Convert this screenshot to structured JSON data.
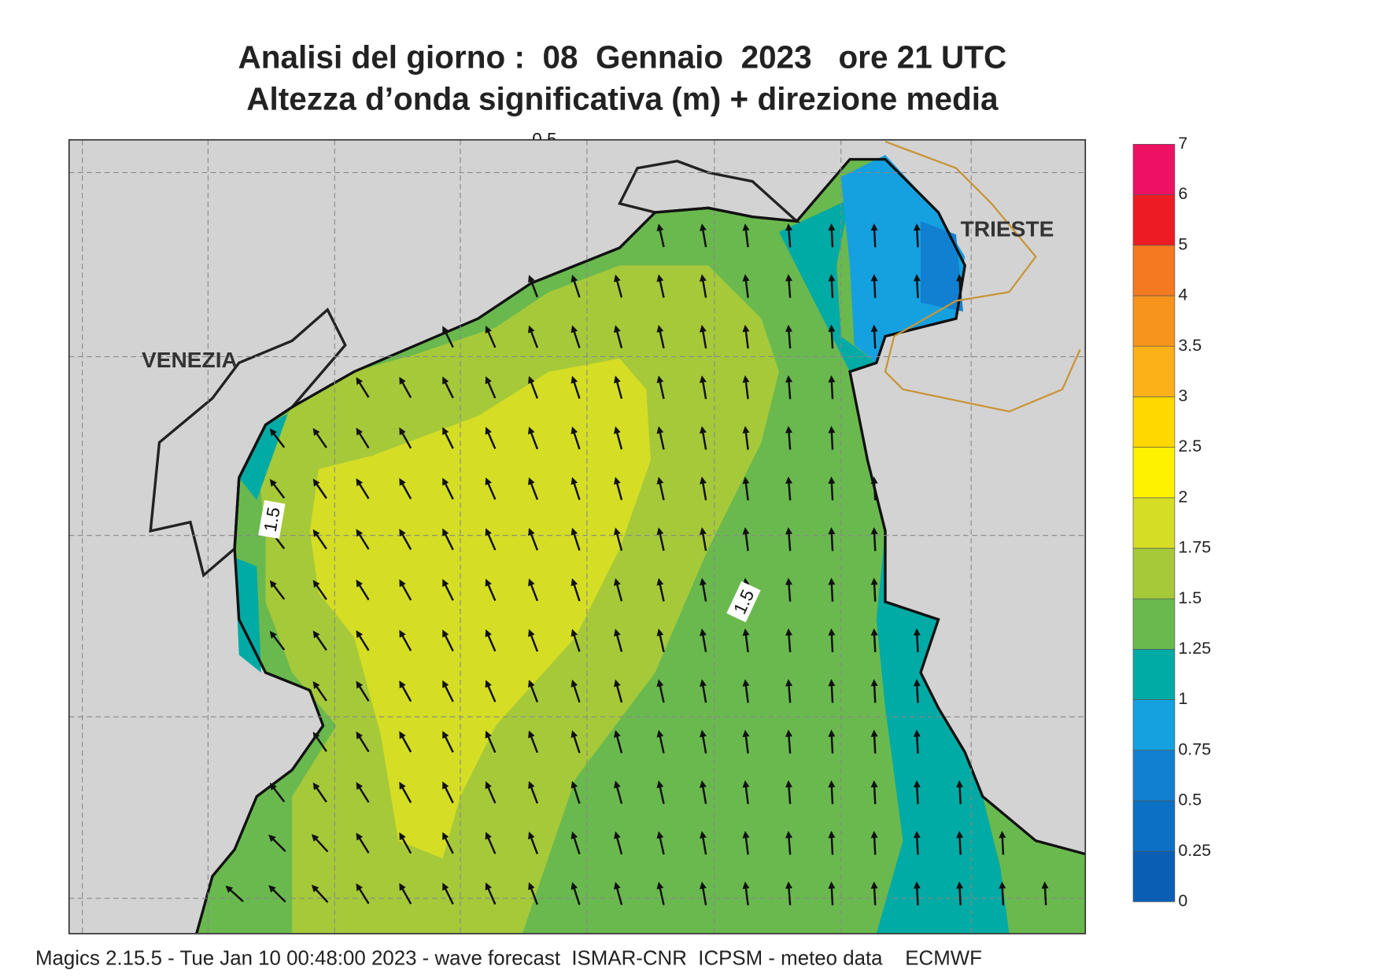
{
  "header": {
    "title": "Analisi del giorno :  08  Gennaio  2023   ore 21 UTC",
    "subtitle": "Altezza d’onda significativa (m) + direzione media"
  },
  "map": {
    "place_labels": [
      "VENEZIA",
      "TRIESTE"
    ],
    "contour_labels": [
      "1.5",
      "1.5",
      "0.5"
    ]
  },
  "colorbar": {
    "ticks": [
      "0",
      "0.25",
      "0.5",
      "0.75",
      "1",
      "1.25",
      "1.5",
      "1.75",
      "2",
      "2.5",
      "3",
      "3.5",
      "4",
      "5",
      "6",
      "7"
    ],
    "colors": [
      "#0a5fb4",
      "#0c70c4",
      "#1280d0",
      "#15a0e0",
      "#00aaa5",
      "#6ab94e",
      "#a6c93a",
      "#d5dd25",
      "#fff200",
      "#ffd800",
      "#fbb117",
      "#f7941d",
      "#f47920",
      "#ed1c24",
      "#ec1163"
    ]
  },
  "footer": "Magics 2.15.5 - Tue Jan 10 00:48:00 2023 - wave forecast  ISMAR-CNR  ICPSM - meteo data    ECMWF"
}
